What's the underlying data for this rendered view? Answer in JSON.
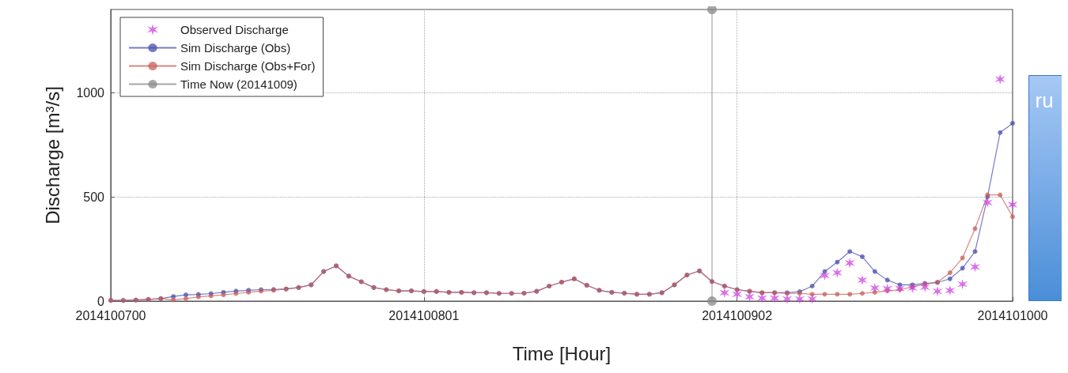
{
  "chart_data": {
    "type": "line",
    "xlabel": "Time [Hour]",
    "ylabel": "Discharge [m³/s]",
    "x": [
      "2014-10-07T00:00",
      "2014-10-07T01:00",
      "2014-10-07T02:00",
      "2014-10-07T03:00",
      "2014-10-07T04:00",
      "2014-10-07T05:00",
      "2014-10-07T06:00",
      "2014-10-07T07:00",
      "2014-10-07T08:00",
      "2014-10-07T09:00",
      "2014-10-07T10:00",
      "2014-10-07T11:00",
      "2014-10-07T12:00",
      "2014-10-07T13:00",
      "2014-10-07T14:00",
      "2014-10-07T15:00",
      "2014-10-07T16:00",
      "2014-10-07T17:00",
      "2014-10-07T18:00",
      "2014-10-07T19:00",
      "2014-10-07T20:00",
      "2014-10-07T21:00",
      "2014-10-07T22:00",
      "2014-10-07T23:00",
      "2014-10-08T00:00",
      "2014-10-08T01:00",
      "2014-10-08T02:00",
      "2014-10-08T03:00",
      "2014-10-08T04:00",
      "2014-10-08T05:00",
      "2014-10-08T06:00",
      "2014-10-08T07:00",
      "2014-10-08T08:00",
      "2014-10-08T09:00",
      "2014-10-08T10:00",
      "2014-10-08T11:00",
      "2014-10-08T12:00",
      "2014-10-08T13:00",
      "2014-10-08T14:00",
      "2014-10-08T15:00",
      "2014-10-08T16:00",
      "2014-10-08T17:00",
      "2014-10-08T18:00",
      "2014-10-08T19:00",
      "2014-10-08T20:00",
      "2014-10-08T21:00",
      "2014-10-08T22:00",
      "2014-10-08T23:00",
      "2014-10-09T00:00",
      "2014-10-09T01:00",
      "2014-10-09T02:00",
      "2014-10-09T03:00",
      "2014-10-09T04:00",
      "2014-10-09T05:00",
      "2014-10-09T06:00",
      "2014-10-09T07:00",
      "2014-10-09T08:00",
      "2014-10-09T09:00",
      "2014-10-09T10:00",
      "2014-10-09T11:00",
      "2014-10-09T12:00",
      "2014-10-09T13:00",
      "2014-10-09T14:00",
      "2014-10-09T15:00",
      "2014-10-09T16:00",
      "2014-10-09T17:00",
      "2014-10-09T18:00",
      "2014-10-09T19:00",
      "2014-10-09T20:00",
      "2014-10-09T21:00",
      "2014-10-09T22:00",
      "2014-10-09T23:00",
      "2014-10-10T00:00"
    ],
    "xlim": [
      "2014-10-07T00:00",
      "2014-10-10T00:00"
    ],
    "xticks": [
      {
        "value": "2014-10-07T00:00",
        "label": "2014100700"
      },
      {
        "value": "2014-10-08T01:00",
        "label": "2014100801"
      },
      {
        "value": "2014-10-09T02:00",
        "label": "2014100902"
      },
      {
        "value": "2014-10-10T00:00",
        "label": "2014101000"
      }
    ],
    "ylim": [
      0,
      1400
    ],
    "yticks": [
      0,
      500,
      1000
    ],
    "grid": true,
    "legend": "top left",
    "series": [
      {
        "name": "Observed Discharge",
        "type": "scatter",
        "marker": "cross",
        "color": "#d040e0",
        "x": [
          "2014-10-09T01:00",
          "2014-10-09T02:00",
          "2014-10-09T03:00",
          "2014-10-09T04:00",
          "2014-10-09T05:00",
          "2014-10-09T06:00",
          "2014-10-09T07:00",
          "2014-10-09T08:00",
          "2014-10-09T09:00",
          "2014-10-09T10:00",
          "2014-10-09T11:00",
          "2014-10-09T12:00",
          "2014-10-09T13:00",
          "2014-10-09T14:00",
          "2014-10-09T15:00",
          "2014-10-09T16:00",
          "2014-10-09T17:00",
          "2014-10-09T18:00",
          "2014-10-09T19:00",
          "2014-10-09T20:00",
          "2014-10-09T21:00",
          "2014-10-09T22:00",
          "2014-10-09T23:00",
          "2014-10-10T00:00"
        ],
        "values": [
          40,
          33,
          21,
          14,
          14,
          10,
          10,
          10,
          123,
          136,
          183,
          101,
          63,
          60,
          60,
          63,
          67,
          47,
          51,
          81,
          164,
          473,
          1065,
          463
        ]
      },
      {
        "name": "Sim Discharge (Obs)",
        "marker": "circle",
        "color": "#4a4fb0",
        "values": [
          3,
          3,
          5,
          8,
          12,
          22,
          30,
          32,
          36,
          42,
          48,
          52,
          55,
          56,
          58,
          65,
          78,
          142,
          169,
          120,
          93,
          65,
          55,
          49,
          49,
          46,
          46,
          42,
          42,
          40,
          40,
          37,
          37,
          38,
          47,
          72,
          91,
          107,
          76,
          52,
          42,
          38,
          33,
          33,
          40,
          78,
          125,
          145,
          94,
          72,
          55,
          47,
          40,
          40,
          40,
          45,
          72,
          142,
          187,
          238,
          213,
          142,
          101,
          78,
          78,
          85,
          89,
          107,
          158,
          238,
          501,
          809,
          854
        ]
      },
      {
        "name": "Sim Discharge (Obs+For)",
        "marker": "circle",
        "color": "#c8605a",
        "values": [
          3,
          3,
          5,
          8,
          12,
          6,
          12,
          20,
          25,
          30,
          36,
          42,
          48,
          52,
          58,
          65,
          78,
          142,
          169,
          120,
          93,
          65,
          55,
          49,
          49,
          46,
          46,
          42,
          42,
          40,
          40,
          37,
          37,
          38,
          47,
          72,
          91,
          107,
          76,
          52,
          42,
          38,
          33,
          33,
          40,
          78,
          125,
          145,
          94,
          72,
          55,
          47,
          40,
          40,
          37,
          37,
          33,
          33,
          33,
          33,
          37,
          42,
          49,
          55,
          68,
          81,
          91,
          136,
          207,
          348,
          510,
          510,
          405
        ]
      },
      {
        "name": "Time Now (20141009)",
        "marker": "circle",
        "color": "#888888",
        "x": [
          "2014-10-09T00:00",
          "2014-10-09T00:00"
        ],
        "values": [
          0,
          1400
        ]
      }
    ],
    "annotations": [
      "ru"
    ]
  }
}
